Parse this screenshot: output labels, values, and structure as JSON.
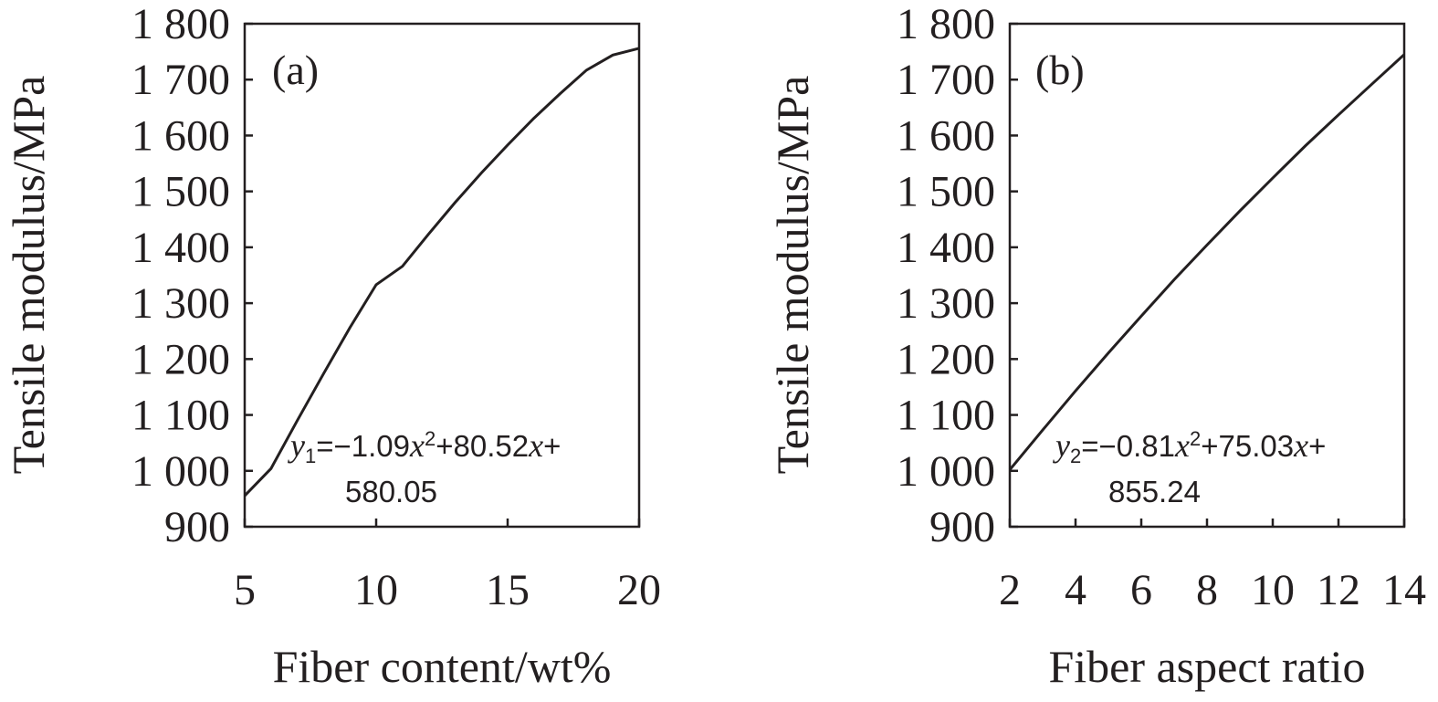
{
  "chart_data": [
    {
      "type": "line",
      "panel_label": "(a)",
      "xlabel": "Fiber content/wt%",
      "ylabel": "Tensile modulus/MPa",
      "xlim": [
        5,
        20
      ],
      "ylim": [
        900,
        1800
      ],
      "x_ticks": [
        {
          "value": 5,
          "label": "5"
        },
        {
          "value": 10,
          "label": "10"
        },
        {
          "value": 15,
          "label": "15"
        },
        {
          "value": 20,
          "label": "20"
        }
      ],
      "y_ticks": [
        {
          "value": 900,
          "label": "900"
        },
        {
          "value": 1000,
          "label": "1 000"
        },
        {
          "value": 1100,
          "label": "1 100"
        },
        {
          "value": 1200,
          "label": "1 200"
        },
        {
          "value": 1300,
          "label": "1 300"
        },
        {
          "value": 1400,
          "label": "1 400"
        },
        {
          "value": 1500,
          "label": "1 500"
        },
        {
          "value": 1600,
          "label": "1 600"
        },
        {
          "value": 1700,
          "label": "1 700"
        },
        {
          "value": 1800,
          "label": "1 800"
        }
      ],
      "equation": {
        "y": "y",
        "sub": "1",
        "eq_a": "=−1.09",
        "x1": "x",
        "sup": "2",
        "eq_b": "+80.52",
        "x2": "x",
        "eq_c": "+",
        "line2": "580.05"
      },
      "coefficients": {
        "a": -1.09,
        "b": 80.52,
        "c": 580.05
      },
      "series": [
        {
          "x": [
            5,
            6,
            7,
            8,
            9,
            10,
            11,
            12,
            13,
            14,
            15,
            16,
            17,
            18,
            19,
            20
          ],
          "y": [
            955.4,
            1004.0,
            1090.0,
            1174.0,
            1256.0,
            1333.0,
            1366.0,
            1424.0,
            1480.0,
            1533.0,
            1583.0,
            1631.0,
            1675.0,
            1717.0,
            1744.0,
            1756.0
          ]
        }
      ]
    },
    {
      "type": "line",
      "panel_label": "(b)",
      "xlabel": "Fiber aspect ratio",
      "ylabel": "Tensile modulus/MPa",
      "xlim": [
        2,
        14
      ],
      "ylim": [
        900,
        1800
      ],
      "x_ticks": [
        {
          "value": 2,
          "label": "2"
        },
        {
          "value": 4,
          "label": "4"
        },
        {
          "value": 6,
          "label": "6"
        },
        {
          "value": 8,
          "label": "8"
        },
        {
          "value": 10,
          "label": "10"
        },
        {
          "value": 12,
          "label": "12"
        },
        {
          "value": 14,
          "label": "14"
        }
      ],
      "y_ticks": [
        {
          "value": 900,
          "label": "900"
        },
        {
          "value": 1000,
          "label": "1 000"
        },
        {
          "value": 1100,
          "label": "1 100"
        },
        {
          "value": 1200,
          "label": "1 200"
        },
        {
          "value": 1300,
          "label": "1 300"
        },
        {
          "value": 1400,
          "label": "1 400"
        },
        {
          "value": 1500,
          "label": "1 500"
        },
        {
          "value": 1600,
          "label": "1 600"
        },
        {
          "value": 1700,
          "label": "1 700"
        },
        {
          "value": 1800,
          "label": "1 800"
        }
      ],
      "equation": {
        "y": "y",
        "sub": "2",
        "eq_a": "=−0.81",
        "x1": "x",
        "sup": "2",
        "eq_b": "+75.03",
        "x2": "x",
        "eq_c": "+",
        "line2": "855.24"
      },
      "coefficients": {
        "a": -0.81,
        "b": 75.03,
        "c": 855.24
      },
      "series": [
        {
          "x": [
            2,
            3,
            4,
            5,
            6,
            7,
            8,
            9,
            10,
            11,
            12,
            13,
            14
          ],
          "y": [
            1002.0,
            1073.0,
            1143.0,
            1211.0,
            1277.0,
            1342.0,
            1404.0,
            1465.0,
            1524.0,
            1582.0,
            1637.0,
            1691.0,
            1745.0
          ]
        }
      ]
    }
  ]
}
